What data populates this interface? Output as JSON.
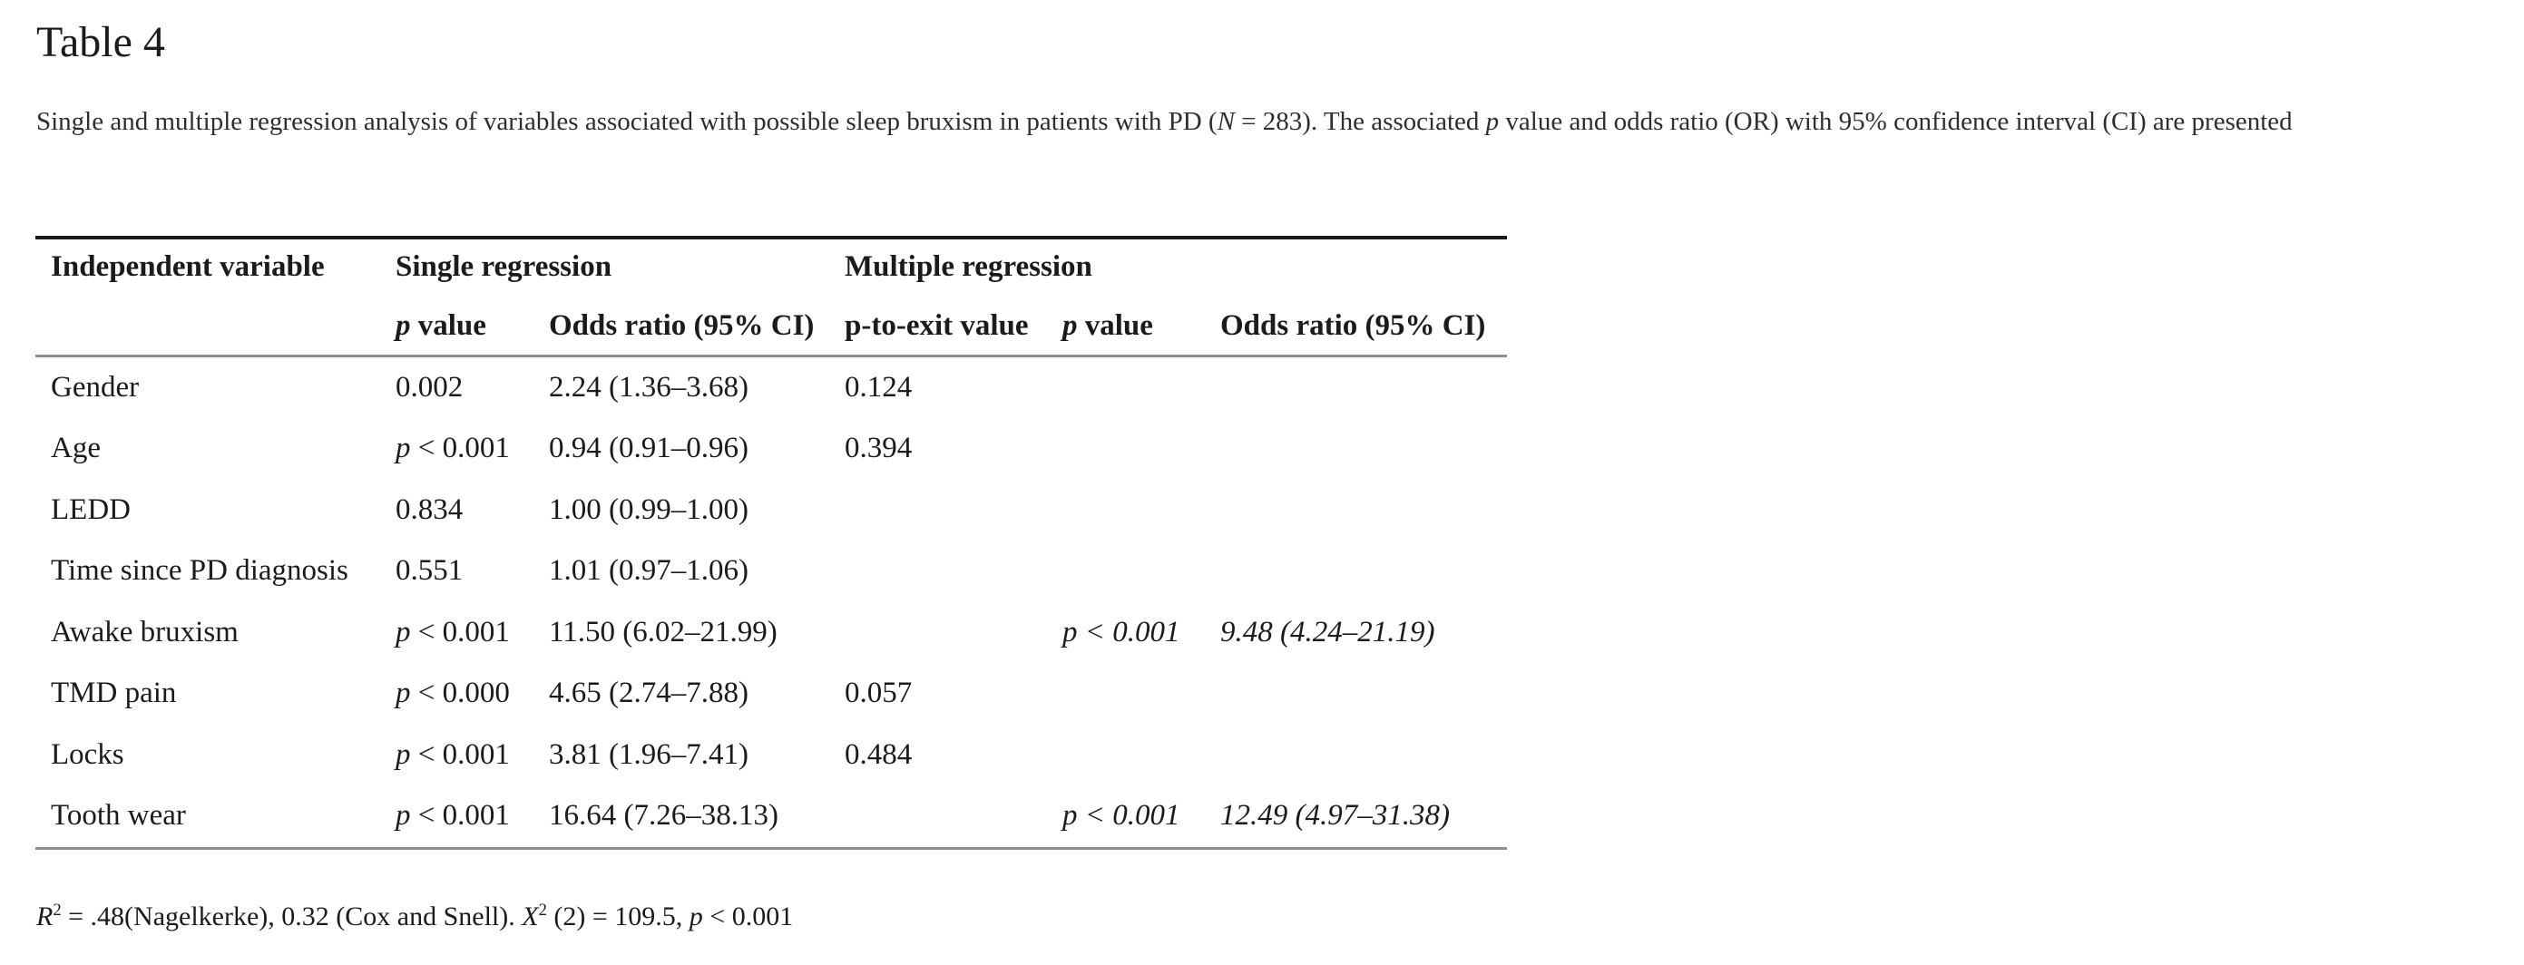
{
  "colors": {
    "text": "#1b1b1b",
    "caption_text": "#2e2e2e",
    "rule_black": "#1b1b1b",
    "rule_gray": "#8f8f8f",
    "background": "#ffffff"
  },
  "title": "Table 4",
  "caption": {
    "segments": [
      {
        "t": "Single and multiple regression analysis of variables associated with possible sleep bruxism in patients with PD ("
      },
      {
        "t": "N",
        "i": true
      },
      {
        "t": " = 283). The associated "
      },
      {
        "t": "p",
        "i": true
      },
      {
        "t": " value and odds ratio (OR) with 95% confidence interval (CI) are presented"
      }
    ]
  },
  "table": {
    "header": {
      "independent_variable": "Independent variable",
      "single_regression": "Single regression",
      "multiple_regression": "Multiple regression",
      "sub_single_p": {
        "segments": [
          {
            "t": "p",
            "i": true
          },
          {
            "t": " value"
          }
        ]
      },
      "sub_single_or": {
        "segments": [
          {
            "t": "Odds ratio (95% CI)"
          }
        ]
      },
      "sub_p_to_exit": {
        "segments": [
          {
            "t": "p-to-exit value"
          }
        ]
      },
      "sub_multi_p": {
        "segments": [
          {
            "t": "p",
            "i": true
          },
          {
            "t": " value"
          }
        ]
      },
      "sub_multi_or": {
        "segments": [
          {
            "t": "Odds ratio (95% CI)"
          }
        ]
      }
    },
    "rows": [
      {
        "variable": {
          "text": "Gender",
          "style": "plain"
        },
        "single_p": {
          "text": "0.002",
          "style": "plain"
        },
        "single_or": {
          "text": "2.24 (1.36–3.68)",
          "style": "plain"
        },
        "p_to_exit": {
          "text": "0.124",
          "style": "plain"
        },
        "multi_p": {
          "text": "",
          "style": "plain"
        },
        "multi_or": {
          "text": "",
          "style": "plain"
        }
      },
      {
        "variable": {
          "text": "Age",
          "style": "plain"
        },
        "single_p": {
          "text": "p < 0.001",
          "style": "leadp"
        },
        "single_or": {
          "text": "0.94 (0.91–0.96)",
          "style": "plain"
        },
        "p_to_exit": {
          "text": "0.394",
          "style": "plain"
        },
        "multi_p": {
          "text": "",
          "style": "plain"
        },
        "multi_or": {
          "text": "",
          "style": "plain"
        }
      },
      {
        "variable": {
          "text": "LEDD",
          "style": "plain"
        },
        "single_p": {
          "text": "0.834",
          "style": "plain"
        },
        "single_or": {
          "text": "1.00 (0.99–1.00)",
          "style": "plain"
        },
        "p_to_exit": {
          "text": "",
          "style": "plain"
        },
        "multi_p": {
          "text": "",
          "style": "plain"
        },
        "multi_or": {
          "text": "",
          "style": "plain"
        }
      },
      {
        "variable": {
          "text": "Time since PD diagnosis",
          "style": "plain"
        },
        "single_p": {
          "text": "0.551",
          "style": "plain"
        },
        "single_or": {
          "text": "1.01 (0.97–1.06)",
          "style": "plain"
        },
        "p_to_exit": {
          "text": "",
          "style": "plain"
        },
        "multi_p": {
          "text": "",
          "style": "plain"
        },
        "multi_or": {
          "text": "",
          "style": "plain"
        }
      },
      {
        "variable": {
          "text": "Awake bruxism",
          "style": "plain"
        },
        "single_p": {
          "text": "p < 0.001",
          "style": "leadp"
        },
        "single_or": {
          "text": "11.50 (6.02–21.99)",
          "style": "plain"
        },
        "p_to_exit": {
          "text": "",
          "style": "plain"
        },
        "multi_p": {
          "text": "p < 0.001",
          "style": "italic"
        },
        "multi_or": {
          "text": "9.48 (4.24–21.19)",
          "style": "italic"
        }
      },
      {
        "variable": {
          "text": "TMD pain",
          "style": "plain"
        },
        "single_p": {
          "text": "p < 0.000",
          "style": "leadp"
        },
        "single_or": {
          "text": "4.65 (2.74–7.88)",
          "style": "plain"
        },
        "p_to_exit": {
          "text": "0.057",
          "style": "plain"
        },
        "multi_p": {
          "text": "",
          "style": "plain"
        },
        "multi_or": {
          "text": "",
          "style": "plain"
        }
      },
      {
        "variable": {
          "text": "Locks",
          "style": "plain"
        },
        "single_p": {
          "text": "p < 0.001",
          "style": "leadp"
        },
        "single_or": {
          "text": "3.81 (1.96–7.41)",
          "style": "plain"
        },
        "p_to_exit": {
          "text": "0.484",
          "style": "plain"
        },
        "multi_p": {
          "text": "",
          "style": "plain"
        },
        "multi_or": {
          "text": "",
          "style": "plain"
        }
      },
      {
        "variable": {
          "text": "Tooth wear",
          "style": "plain"
        },
        "single_p": {
          "text": "p < 0.001",
          "style": "leadp"
        },
        "single_or": {
          "text": "16.64 (7.26–38.13)",
          "style": "plain"
        },
        "p_to_exit": {
          "text": "",
          "style": "plain"
        },
        "multi_p": {
          "text": "p < 0.001",
          "style": "italic"
        },
        "multi_or": {
          "text": "12.49 (4.97–31.38)",
          "style": "italic"
        }
      }
    ]
  },
  "footnote": {
    "segments": [
      {
        "t": "R",
        "i": true
      },
      {
        "t": "2",
        "sup": true
      },
      {
        "t": " = .48(Nagelkerke), 0.32 (Cox and Snell). "
      },
      {
        "t": "X",
        "i": true
      },
      {
        "t": "2",
        "sup": true
      },
      {
        "t": " (2) = 109.5, "
      },
      {
        "t": "p",
        "i": true
      },
      {
        "t": " < 0.001"
      }
    ]
  }
}
